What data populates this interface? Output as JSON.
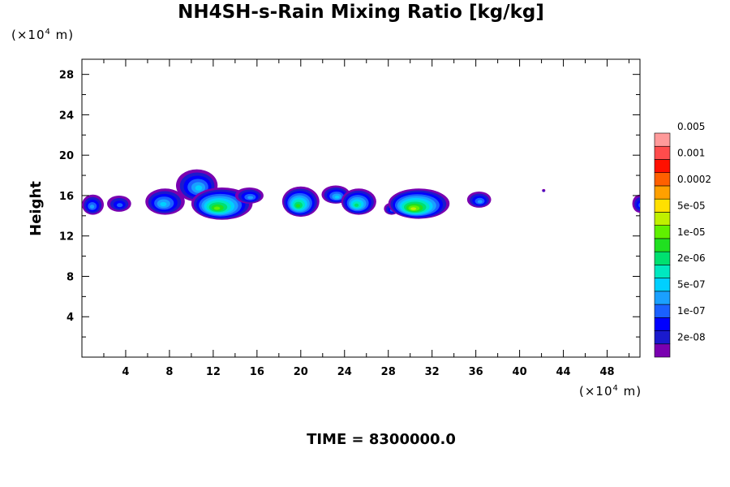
{
  "chart_data": {
    "type": "contour",
    "title": "NH4SH-s-Rain Mixing Ratio [kg/kg]",
    "ylabel": "Height",
    "xlabel": "",
    "x_unit": {
      "prefix": "(×10",
      "exp": "4",
      "suffix": " m)"
    },
    "y_unit": {
      "prefix": "(×10",
      "exp": "4",
      "suffix": " m)"
    },
    "time_label": "TIME = 8300000.0",
    "xlim": [
      0,
      51
    ],
    "ylim": [
      0,
      29.5
    ],
    "x_ticks": [
      4,
      8,
      12,
      16,
      20,
      24,
      28,
      32,
      36,
      40,
      44,
      48
    ],
    "y_ticks": [
      4,
      8,
      12,
      16,
      20,
      24,
      28
    ],
    "colorbar": {
      "levels": [
        "2e-08",
        "1e-07",
        "5e-07",
        "2e-06",
        "1e-05",
        "5e-05",
        "0.0002",
        "0.001",
        "0.005"
      ],
      "colors": [
        "#7a00b0",
        "#1a1acd",
        "#0000ff",
        "#1a60ff",
        "#1aa0ff",
        "#00d0ff",
        "#00e8c0",
        "#00e070",
        "#20e020",
        "#60f000",
        "#c0f000",
        "#ffe000",
        "#ffa000",
        "#ff6000",
        "#ff1000",
        "#ff4c4c",
        "#ff9a9a"
      ]
    },
    "blobs": [
      {
        "x": 1.0,
        "y": 15.1,
        "rx": 1.0,
        "ry": 1.0,
        "peak": 4
      },
      {
        "x": 3.4,
        "y": 15.2,
        "rx": 1.1,
        "ry": 0.8,
        "peak": 3
      },
      {
        "x": 7.6,
        "y": 15.4,
        "rx": 1.8,
        "ry": 1.3,
        "peak": 5
      },
      {
        "x": 10.5,
        "y": 17.0,
        "rx": 1.9,
        "ry": 1.6,
        "peak": 5
      },
      {
        "x": 12.8,
        "y": 15.2,
        "rx": 2.8,
        "ry": 1.6,
        "peak": 9
      },
      {
        "x": 15.3,
        "y": 16.0,
        "rx": 1.3,
        "ry": 0.8,
        "peak": 4
      },
      {
        "x": 20.0,
        "y": 15.4,
        "rx": 1.7,
        "ry": 1.5,
        "peak": 8
      },
      {
        "x": 23.2,
        "y": 16.1,
        "rx": 1.3,
        "ry": 0.9,
        "peak": 5
      },
      {
        "x": 25.3,
        "y": 15.4,
        "rx": 1.6,
        "ry": 1.3,
        "peak": 7
      },
      {
        "x": 28.3,
        "y": 14.7,
        "rx": 0.7,
        "ry": 0.6,
        "peak": 3
      },
      {
        "x": 30.8,
        "y": 15.2,
        "rx": 2.8,
        "ry": 1.5,
        "peak": 10
      },
      {
        "x": 36.3,
        "y": 15.6,
        "rx": 1.1,
        "ry": 0.8,
        "peak": 4
      },
      {
        "x": 42.2,
        "y": 16.5,
        "rx": 0.15,
        "ry": 0.15,
        "peak": 1
      },
      {
        "x": 51.0,
        "y": 15.2,
        "rx": 0.7,
        "ry": 0.9,
        "peak": 3
      }
    ]
  }
}
